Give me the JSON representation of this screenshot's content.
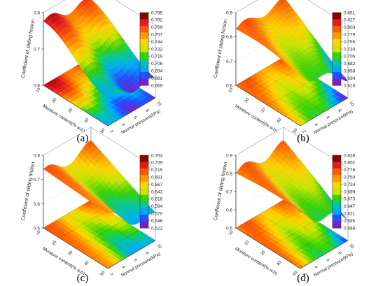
{
  "chart_data": [
    {
      "type": "surface3d",
      "panel_label": "(a)",
      "z_axis_label": "Coefficient of sliding friction",
      "x_axis_label": "Moisture content(% w.b)",
      "y_axis_label": "Normal pressure(kPa)",
      "z_ticks": [
        "0.6",
        "0.7",
        "0.8"
      ],
      "x_ticks": [
        "10",
        "20",
        "30",
        "40",
        "50"
      ],
      "y_ticks": [
        "2",
        "4",
        "6",
        "8",
        "10"
      ],
      "colorbar_ticks": [
        "0.795",
        "0.782",
        "0.769",
        "0.757",
        "0.744",
        "0.732",
        "0.719",
        "0.706",
        "0.694",
        "0.681",
        "0.669"
      ],
      "zlim": [
        0.6,
        0.8
      ]
    },
    {
      "type": "surface3d",
      "panel_label": "(b)",
      "z_axis_label": "Coefficient of sliding friction",
      "x_axis_label": "Moisture content(% w.b)",
      "y_axis_label": "Normal pressure(kPa)",
      "z_ticks": [
        "0.6",
        "0.7",
        "0.8",
        "0.9"
      ],
      "x_ticks": [
        "10",
        "20",
        "30",
        "40",
        "50"
      ],
      "y_ticks": [
        "2",
        "4",
        "6",
        "8",
        "10"
      ],
      "colorbar_ticks": [
        "0.851",
        "0.827",
        "0.803",
        "0.779",
        "0.755",
        "0.730",
        "0.706",
        "0.682",
        "0.658",
        "0.634",
        "0.610"
      ],
      "zlim": [
        0.6,
        0.9
      ]
    },
    {
      "type": "surface3d",
      "panel_label": "(c)",
      "z_axis_label": "Coefficient of sliding friction",
      "x_axis_label": "Moisture content(% w.b)",
      "y_axis_label": "Normal pressure(kPa)",
      "z_ticks": [
        "0.5",
        "0.6",
        "0.7",
        "0.8"
      ],
      "x_ticks": [
        "10",
        "20",
        "30",
        "40",
        "50"
      ],
      "y_ticks": [
        "2",
        "4",
        "6",
        "8",
        "10"
      ],
      "colorbar_ticks": [
        "0.763",
        "0.739",
        "0.715",
        "0.691",
        "0.667",
        "0.643",
        "0.618",
        "0.594",
        "0.570",
        "0.546",
        "0.522"
      ],
      "zlim": [
        0.5,
        0.8
      ]
    },
    {
      "type": "surface3d",
      "panel_label": "(d)",
      "z_axis_label": "Coefficient of sliding friction",
      "x_axis_label": "Moisture content(% w.b)",
      "y_axis_label": "Normal pressure(kPa)",
      "z_ticks": [
        "0.5",
        "0.6",
        "0.7",
        "0.8",
        "0.9"
      ],
      "x_ticks": [
        "10",
        "20",
        "30",
        "40",
        "50"
      ],
      "y_ticks": [
        "2",
        "4",
        "6",
        "8",
        "10"
      ],
      "colorbar_ticks": [
        "0.828",
        "0.802",
        "0.776",
        "0.750",
        "0.724",
        "0.699",
        "0.673",
        "0.647",
        "0.621",
        "0.595",
        "0.569"
      ],
      "zlim": [
        0.5,
        0.9
      ]
    }
  ],
  "colorbar_colors": [
    "#8b0000",
    "#e41a1c",
    "#ff5a00",
    "#ff9900",
    "#ffd400",
    "#c8e600",
    "#39d400",
    "#00c8a0",
    "#00a8ff",
    "#2050ff",
    "#7a1fd0"
  ]
}
